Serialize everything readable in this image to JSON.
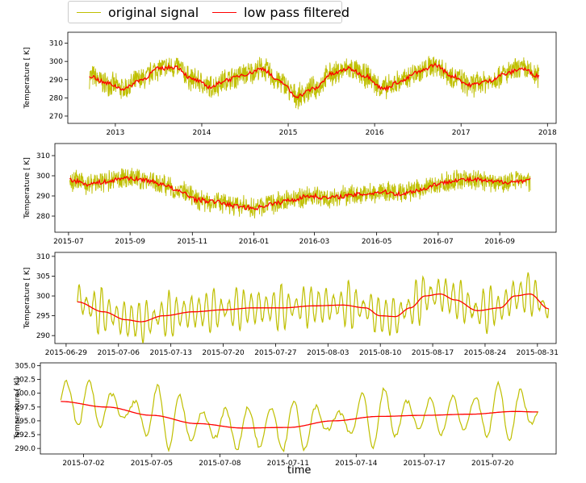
{
  "legend": {
    "placement": "top-left",
    "items": [
      {
        "name": "original signal",
        "color": "#bfbf00"
      },
      {
        "name": "low pass filtered",
        "color": "#ff0000"
      }
    ]
  },
  "xlabel": "time",
  "chart_data": [
    {
      "type": "line",
      "ylabel": "Temperature [$^\\circ$K]",
      "ylabel_text": "Temperature [ K]",
      "xlim": [
        2012.45,
        2018.1
      ],
      "ylim": [
        266,
        316
      ],
      "x_ticks": [
        2013,
        2014,
        2015,
        2016,
        2017,
        2018
      ],
      "x_tick_labels": [
        "2013",
        "2014",
        "2015",
        "2016",
        "2017",
        "2018"
      ],
      "y_ticks": [
        270,
        280,
        290,
        300,
        310
      ],
      "y_tick_labels": [
        "270",
        "280",
        "290",
        "300",
        "310"
      ],
      "series": [
        {
          "name": "original signal",
          "color": "#bfbf00",
          "x": [
            2012.7,
            2012.9,
            2013.1,
            2013.3,
            2013.5,
            2013.7,
            2013.9,
            2014.1,
            2014.3,
            2014.5,
            2014.7,
            2014.9,
            2015.1,
            2015.3,
            2015.5,
            2015.7,
            2015.9,
            2016.1,
            2016.3,
            2016.5,
            2016.7,
            2016.9,
            2017.1,
            2017.3,
            2017.5,
            2017.7,
            2017.9
          ],
          "center": [
            292,
            288,
            285,
            290,
            296,
            297,
            290,
            286,
            290,
            293,
            296,
            289,
            281,
            285,
            293,
            296,
            292,
            285,
            289,
            294,
            298,
            292,
            287,
            289,
            293,
            296,
            292
          ],
          "amplitude": 7.5
        },
        {
          "name": "low pass filtered",
          "color": "#ff0000",
          "x": [
            2012.7,
            2012.9,
            2013.1,
            2013.3,
            2013.5,
            2013.7,
            2013.9,
            2014.1,
            2014.3,
            2014.5,
            2014.7,
            2014.9,
            2015.1,
            2015.3,
            2015.5,
            2015.7,
            2015.9,
            2016.1,
            2016.3,
            2016.5,
            2016.7,
            2016.9,
            2017.1,
            2017.3,
            2017.5,
            2017.7,
            2017.9
          ],
          "y": [
            292,
            288,
            285,
            290,
            296,
            297,
            290,
            286,
            290,
            293,
            296,
            289,
            281,
            285,
            293,
            296,
            292,
            285,
            289,
            294,
            298,
            292,
            287,
            289,
            293,
            296,
            292
          ]
        }
      ]
    },
    {
      "type": "line",
      "ylabel": "Temperature [$^\\circ$K]",
      "ylabel_text": "Temperature [ K]",
      "xlim": [
        2015.46,
        2016.82
      ],
      "ylim": [
        272,
        316
      ],
      "x_ticks": [
        2015.497,
        2015.664,
        2015.833,
        2016.0,
        2016.164,
        2016.333,
        2016.5,
        2016.667
      ],
      "x_tick_labels": [
        "2015-07",
        "2015-09",
        "2015-11",
        "2016-01",
        "2016-03",
        "2016-05",
        "2016-07",
        "2016-09"
      ],
      "y_ticks": [
        280,
        290,
        300,
        310
      ],
      "y_tick_labels": [
        "280",
        "290",
        "300",
        "310"
      ],
      "series": [
        {
          "name": "original signal",
          "color": "#bfbf00",
          "x": [
            2015.5,
            2015.55,
            2015.6,
            2015.65,
            2015.7,
            2015.75,
            2015.8,
            2015.85,
            2015.9,
            2015.95,
            2016.0,
            2016.05,
            2016.1,
            2016.15,
            2016.2,
            2016.25,
            2016.3,
            2016.35,
            2016.4,
            2016.45,
            2016.5,
            2016.55,
            2016.6,
            2016.65,
            2016.7,
            2016.75
          ],
          "center": [
            298,
            296,
            297,
            299,
            298,
            296,
            292,
            288,
            287,
            285,
            284,
            286,
            288,
            290,
            289,
            290,
            291,
            292,
            291,
            293,
            296,
            298,
            298,
            297,
            297,
            298
          ],
          "amplitude": 6
        },
        {
          "name": "low pass filtered",
          "color": "#ff0000",
          "x": [
            2015.5,
            2015.55,
            2015.6,
            2015.65,
            2015.7,
            2015.75,
            2015.8,
            2015.85,
            2015.9,
            2015.95,
            2016.0,
            2016.05,
            2016.1,
            2016.15,
            2016.2,
            2016.25,
            2016.3,
            2016.35,
            2016.4,
            2016.45,
            2016.5,
            2016.55,
            2016.6,
            2016.65,
            2016.7,
            2016.75
          ],
          "y": [
            298,
            296,
            297,
            299,
            298,
            296,
            292,
            288,
            287,
            285,
            284,
            286,
            288,
            290,
            289,
            290,
            291,
            292,
            291,
            293,
            296,
            298,
            298,
            297,
            297,
            298
          ]
        }
      ]
    },
    {
      "type": "line",
      "ylabel": "Temperature [$^\\circ$K]",
      "ylabel_text": "Temperature [ K]",
      "xlim": [
        -1.5,
        65.5
      ],
      "ylim": [
        288,
        311
      ],
      "x_ticks": [
        0,
        7,
        14,
        21,
        28,
        35,
        42,
        49,
        56,
        63
      ],
      "x_tick_labels": [
        "2015-06-29",
        "2015-07-06",
        "2015-07-13",
        "2015-07-20",
        "2015-07-27",
        "2015-08-03",
        "2015-08-10",
        "2015-08-17",
        "2015-08-24",
        "2015-08-31"
      ],
      "x_unit": "days since 2015-06-29",
      "y_ticks": [
        290,
        295,
        300,
        305,
        310
      ],
      "y_tick_labels": [
        "290",
        "295",
        "300",
        "305",
        "310"
      ],
      "series": [
        {
          "name": "original signal",
          "color": "#bfbf00",
          "x": [
            1.5,
            5,
            8,
            10,
            13,
            17,
            21,
            25,
            29,
            33,
            37,
            40,
            42,
            44,
            46,
            48,
            50,
            52,
            55,
            58,
            60,
            62,
            64.5
          ],
          "center": [
            298.5,
            296,
            294,
            293.5,
            295,
            296,
            296.5,
            297,
            297,
            297.5,
            297.7,
            297,
            295,
            294.8,
            297,
            300,
            300.5,
            299,
            296.3,
            297,
            300,
            300.5,
            296.8
          ],
          "amplitude": 5.5,
          "period_days": 1
        },
        {
          "name": "low pass filtered",
          "color": "#ff0000",
          "x": [
            1.5,
            5,
            8,
            10,
            13,
            17,
            21,
            25,
            29,
            33,
            37,
            40,
            42,
            44,
            46,
            48,
            50,
            52,
            55,
            58,
            60,
            62,
            64.5
          ],
          "y": [
            298.5,
            296,
            294,
            293.5,
            295,
            296,
            296.5,
            297,
            297,
            297.5,
            297.7,
            297,
            295,
            294.8,
            297,
            300,
            300.5,
            299,
            296.3,
            297,
            300,
            300.5,
            296.8
          ]
        }
      ]
    },
    {
      "type": "line",
      "ylabel": "Temperature [$^\\circ$K]",
      "ylabel_text": "Temperature [ K]",
      "xlim": [
        -0.9,
        21.8
      ],
      "ylim": [
        289,
        305.5
      ],
      "x_ticks": [
        1,
        4,
        7,
        10,
        13,
        16,
        19
      ],
      "x_tick_labels": [
        "2015-07-02",
        "2015-07-05",
        "2015-07-08",
        "2015-07-11",
        "2015-07-14",
        "2015-07-17",
        "2015-07-20"
      ],
      "x_unit": "days since 2015-07-01",
      "y_ticks": [
        290.0,
        292.5,
        295.0,
        297.5,
        300.0,
        302.5,
        305.0
      ],
      "y_tick_labels": [
        "290.0",
        "292.5",
        "295.0",
        "297.5",
        "300.0",
        "302.5",
        "305.0"
      ],
      "series": [
        {
          "name": "original signal",
          "color": "#bfbf00",
          "x": [
            0,
            2,
            4,
            6,
            8,
            10,
            12,
            14,
            16,
            18,
            20,
            21
          ],
          "center": [
            298.5,
            297.5,
            296,
            294.5,
            293.7,
            293.8,
            295,
            295.8,
            296,
            296.2,
            296.7,
            296.6
          ],
          "amplitude": 5,
          "period_days": 1
        },
        {
          "name": "low pass filtered",
          "color": "#ff0000",
          "x": [
            0,
            2,
            4,
            6,
            8,
            10,
            12,
            14,
            16,
            18,
            20,
            21
          ],
          "y": [
            298.5,
            297.5,
            296,
            294.5,
            293.7,
            293.8,
            295,
            295.8,
            296,
            296.2,
            296.7,
            296.6
          ]
        }
      ]
    }
  ]
}
